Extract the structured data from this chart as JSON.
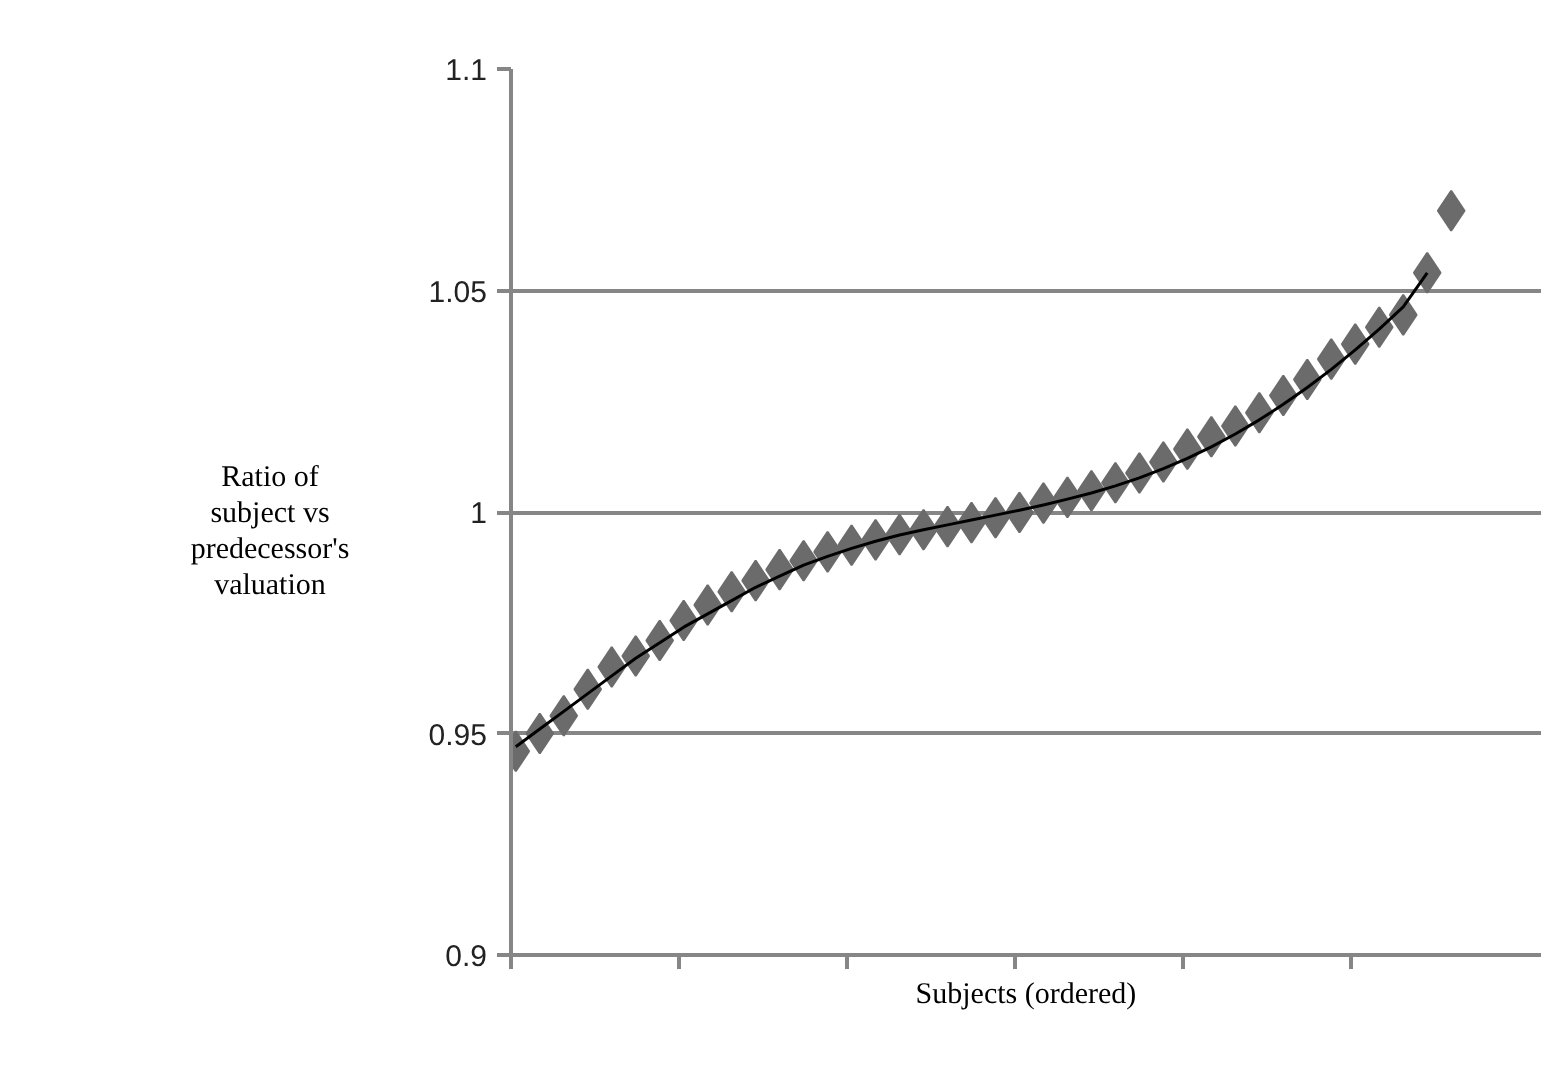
{
  "chart_data": {
    "type": "scatter",
    "xlabel": "Subjects (ordered)",
    "ylabel": "Ratio of subject vs predecessor's valuation",
    "categories": [
      null,
      null,
      null,
      null,
      null,
      null,
      null,
      null,
      null,
      null,
      null,
      null,
      null,
      null,
      null,
      null,
      null,
      null,
      null,
      null,
      null,
      null,
      null,
      null,
      null,
      null,
      null,
      null,
      null,
      null,
      null,
      null,
      null,
      null,
      null,
      null,
      null,
      null,
      null,
      null
    ],
    "ylim": [
      0.9,
      1.1
    ],
    "yticks": [
      0.9,
      0.95,
      1,
      1.05,
      1.1
    ],
    "grid": "y",
    "marker": "diamond",
    "tick_labels": "y",
    "series": [
      {
        "color": "#6b6b6b",
        "values": [
          0.946,
          0.95,
          0.954,
          0.96,
          0.965,
          0.9675,
          0.971,
          0.9755,
          0.979,
          0.982,
          0.9845,
          0.987,
          0.989,
          0.991,
          0.9925,
          0.9937,
          0.9949,
          0.996,
          0.9967,
          0.9976,
          0.9987,
          0.9999,
          1.002,
          1.0033,
          1.0048,
          1.0066,
          1.0088,
          1.0113,
          1.0142,
          1.017,
          1.0194,
          1.0224,
          1.0263,
          1.0299,
          1.0345,
          1.0379,
          1.0417,
          1.0445,
          1.054,
          1.068
        ]
      },
      {
        "type": "line",
        "color": "#000000",
        "marker": "none",
        "values": [
          0.947,
          0.951,
          0.955,
          0.959,
          0.963,
          0.967,
          0.9705,
          0.974,
          0.977,
          0.98,
          0.983,
          0.9855,
          0.988,
          0.99,
          0.9918,
          0.9934,
          0.9948,
          0.996,
          0.9971,
          0.9982,
          0.9993,
          1.0004,
          1.0016,
          1.0029,
          1.0043,
          1.0059,
          1.0077,
          1.0098,
          1.0121,
          1.0147,
          1.0176,
          1.0208,
          1.0243,
          1.0281,
          1.0322,
          1.0366,
          1.0413,
          1.0463,
          1.054,
          null
        ]
      }
    ]
  }
}
